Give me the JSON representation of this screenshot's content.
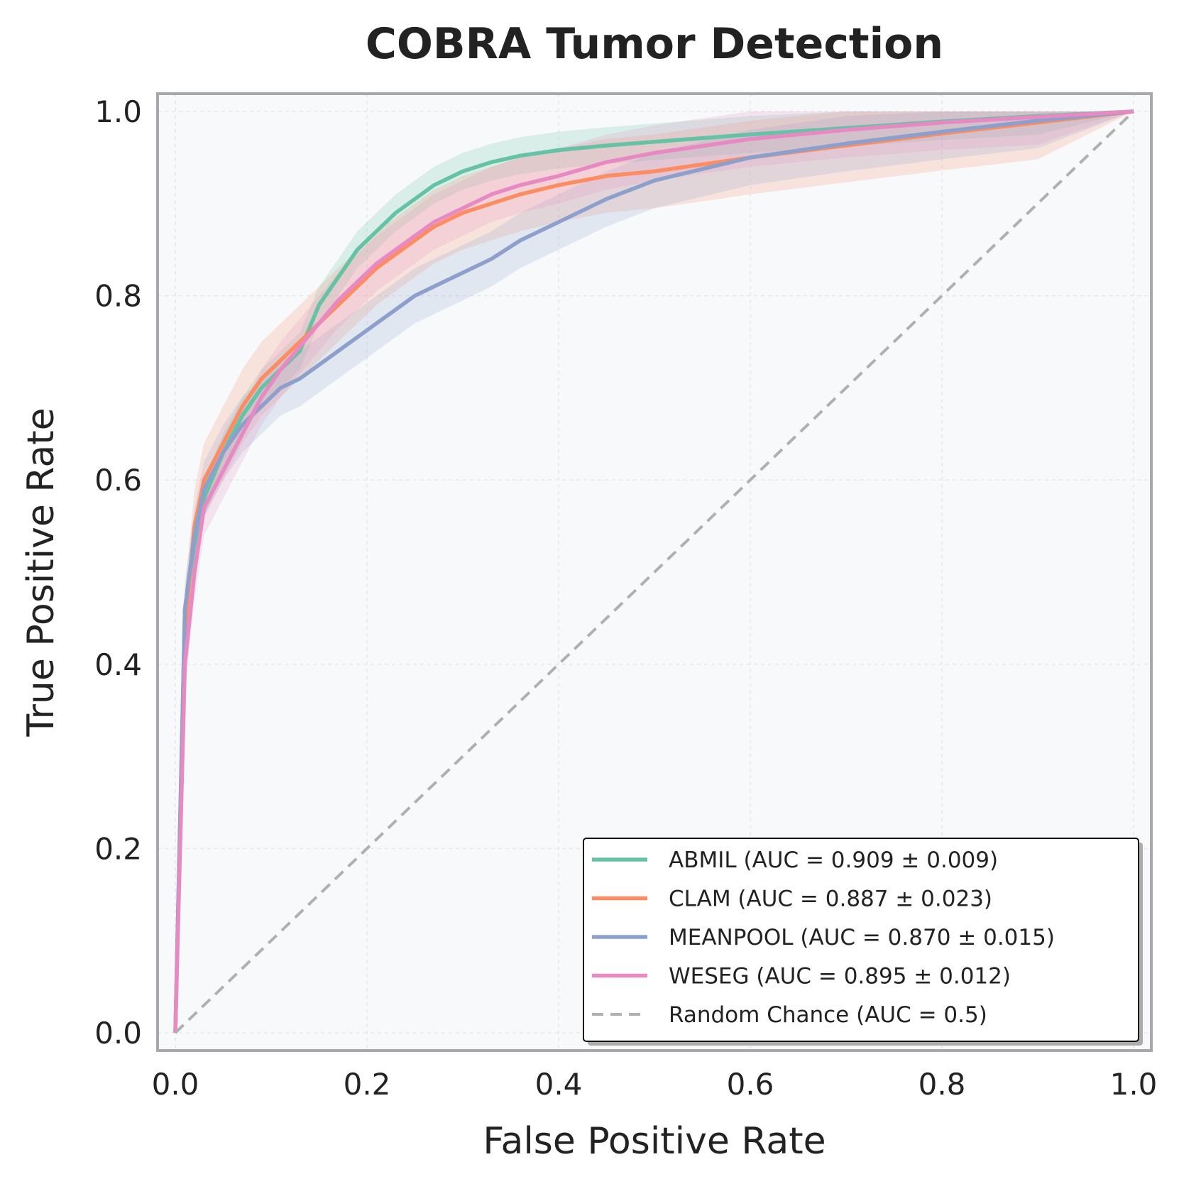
{
  "chart_data": {
    "type": "line",
    "title": "COBRA Tumor Detection",
    "xlabel": "False Positive Rate",
    "ylabel": "True Positive Rate",
    "xlim": [
      0.0,
      1.0
    ],
    "ylim": [
      0.0,
      1.0
    ],
    "xticks": [
      "0.0",
      "0.2",
      "0.4",
      "0.6",
      "0.8",
      "1.0"
    ],
    "yticks": [
      "0.0",
      "0.2",
      "0.4",
      "0.6",
      "0.8",
      "1.0"
    ],
    "grid": true,
    "legend_position": "bottom-right",
    "background": "#f7f9fb",
    "series": [
      {
        "name": "ABMIL (AUC = 0.909 ± 0.009)",
        "color": "#66c2a5",
        "band": 0.02,
        "x": [
          0,
          0.01,
          0.02,
          0.03,
          0.05,
          0.07,
          0.09,
          0.11,
          0.13,
          0.15,
          0.17,
          0.19,
          0.21,
          0.23,
          0.25,
          0.27,
          0.3,
          0.33,
          0.36,
          0.4,
          0.45,
          0.5,
          0.6,
          0.7,
          0.8,
          0.9,
          1.0
        ],
        "y": [
          0,
          0.46,
          0.53,
          0.58,
          0.63,
          0.67,
          0.7,
          0.72,
          0.74,
          0.79,
          0.82,
          0.85,
          0.87,
          0.89,
          0.905,
          0.92,
          0.935,
          0.945,
          0.952,
          0.958,
          0.963,
          0.967,
          0.975,
          0.982,
          0.989,
          0.995,
          1.0
        ]
      },
      {
        "name": "CLAM (AUC = 0.887 ± 0.023)",
        "color": "#fc8d62",
        "band": 0.04,
        "x": [
          0,
          0.01,
          0.02,
          0.03,
          0.05,
          0.07,
          0.09,
          0.11,
          0.13,
          0.15,
          0.17,
          0.19,
          0.21,
          0.23,
          0.25,
          0.27,
          0.3,
          0.33,
          0.36,
          0.4,
          0.45,
          0.5,
          0.6,
          0.7,
          0.8,
          0.9,
          1.0
        ],
        "y": [
          0,
          0.44,
          0.55,
          0.6,
          0.64,
          0.68,
          0.71,
          0.73,
          0.75,
          0.77,
          0.79,
          0.81,
          0.83,
          0.845,
          0.86,
          0.875,
          0.89,
          0.9,
          0.91,
          0.92,
          0.93,
          0.935,
          0.95,
          0.963,
          0.976,
          0.988,
          1.0
        ]
      },
      {
        "name": "MEANPOOL (AUC = 0.870 ± 0.015)",
        "color": "#8da0cb",
        "band": 0.03,
        "x": [
          0,
          0.01,
          0.02,
          0.03,
          0.05,
          0.07,
          0.09,
          0.11,
          0.13,
          0.15,
          0.17,
          0.19,
          0.21,
          0.23,
          0.25,
          0.27,
          0.3,
          0.33,
          0.36,
          0.4,
          0.45,
          0.5,
          0.6,
          0.7,
          0.8,
          0.9,
          1.0
        ],
        "y": [
          0,
          0.46,
          0.54,
          0.59,
          0.63,
          0.66,
          0.68,
          0.7,
          0.71,
          0.725,
          0.74,
          0.755,
          0.77,
          0.785,
          0.8,
          0.81,
          0.825,
          0.84,
          0.86,
          0.88,
          0.905,
          0.925,
          0.95,
          0.965,
          0.978,
          0.99,
          1.0
        ]
      },
      {
        "name": "WESEG (AUC = 0.895 ± 0.012)",
        "color": "#e78ac3",
        "band": 0.03,
        "x": [
          0,
          0.01,
          0.02,
          0.03,
          0.05,
          0.07,
          0.09,
          0.11,
          0.13,
          0.15,
          0.17,
          0.19,
          0.21,
          0.23,
          0.25,
          0.27,
          0.3,
          0.33,
          0.36,
          0.4,
          0.45,
          0.5,
          0.6,
          0.7,
          0.8,
          0.9,
          1.0
        ],
        "y": [
          0,
          0.4,
          0.5,
          0.57,
          0.61,
          0.65,
          0.69,
          0.72,
          0.745,
          0.77,
          0.795,
          0.815,
          0.835,
          0.85,
          0.865,
          0.88,
          0.895,
          0.91,
          0.92,
          0.93,
          0.945,
          0.955,
          0.97,
          0.98,
          0.988,
          0.994,
          1.0
        ]
      },
      {
        "name": "Random Chance (AUC = 0.5)",
        "color": "#b0b0b0",
        "dashed": true,
        "x": [
          0,
          1
        ],
        "y": [
          0,
          1
        ]
      }
    ]
  }
}
